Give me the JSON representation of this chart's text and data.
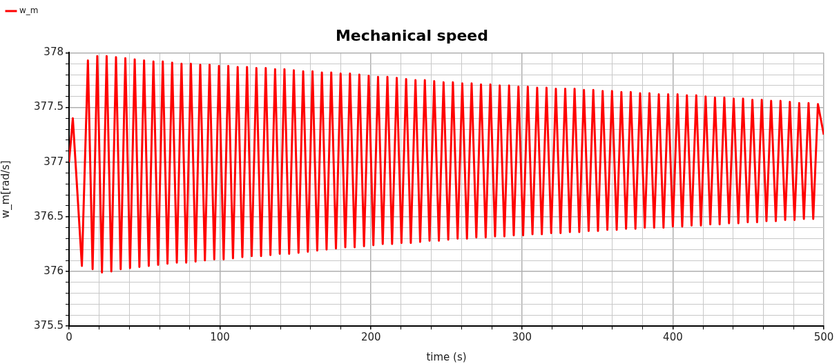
{
  "chart_data": {
    "type": "line",
    "title": "Mechanical speed",
    "xlabel": "time (s)",
    "ylabel": "w_m[rad/s]",
    "legend": "top left",
    "grid": true,
    "marker": "none",
    "line_style": "solid",
    "xlim": [
      0,
      500
    ],
    "ylim": [
      375.5,
      378
    ],
    "xticks": [
      0,
      {
        "value": 20,
        "label": null
      },
      {
        "value": 40,
        "label": null
      },
      {
        "value": 60,
        "label": null
      },
      {
        "value": 80,
        "label": null
      },
      100,
      {
        "value": 120,
        "label": null
      },
      {
        "value": 140,
        "label": null
      },
      {
        "value": 160,
        "label": null
      },
      {
        "value": 180,
        "label": null
      },
      200,
      {
        "value": 220,
        "label": null
      },
      {
        "value": 240,
        "label": null
      },
      {
        "value": 260,
        "label": null
      },
      {
        "value": 280,
        "label": null
      },
      300,
      {
        "value": 320,
        "label": null
      },
      {
        "value": 340,
        "label": null
      },
      {
        "value": 360,
        "label": null
      },
      {
        "value": 380,
        "label": null
      },
      400,
      {
        "value": 420,
        "label": null
      },
      {
        "value": 440,
        "label": null
      },
      {
        "value": 460,
        "label": null
      },
      {
        "value": 480,
        "label": null
      },
      500
    ],
    "yticks": [
      375.5,
      {
        "value": 375.6,
        "label": null
      },
      {
        "value": 375.7,
        "label": null
      },
      {
        "value": 375.8,
        "label": null
      },
      {
        "value": 375.9,
        "label": null
      },
      376,
      {
        "value": 376.1,
        "label": null
      },
      {
        "value": 376.2,
        "label": null
      },
      {
        "value": 376.3,
        "label": null
      },
      {
        "value": 376.4,
        "label": null
      },
      376.5,
      {
        "value": 376.6,
        "label": null
      },
      {
        "value": 376.7,
        "label": null
      },
      {
        "value": 376.8,
        "label": null
      },
      {
        "value": 376.9,
        "label": null
      },
      377,
      {
        "value": 377.1,
        "label": null
      },
      {
        "value": 377.2,
        "label": null
      },
      {
        "value": 377.3,
        "label": null
      },
      {
        "value": 377.4,
        "label": null
      },
      377.5,
      {
        "value": 377.6,
        "label": null
      },
      {
        "value": 377.7,
        "label": null
      },
      {
        "value": 377.8,
        "label": null
      },
      {
        "value": 377.9,
        "label": null
      },
      378
    ],
    "series": [
      {
        "name": "w_m",
        "color": "#ff0000",
        "x": [
          0,
          2.5,
          8.5,
          12.5,
          15.6,
          18.7,
          21.8,
          24.9,
          28.0,
          31.1,
          34.2,
          37.3,
          40.4,
          43.5,
          46.6,
          49.7,
          52.8,
          55.9,
          59.0,
          62.1,
          65.2,
          68.3,
          71.4,
          74.5,
          77.6,
          80.7,
          83.8,
          86.9,
          90.0,
          93.1,
          96.2,
          99.3,
          102.4,
          105.5,
          108.6,
          111.7,
          114.8,
          117.9,
          121.0,
          124.1,
          127.2,
          130.3,
          133.4,
          136.5,
          139.6,
          142.7,
          145.8,
          148.9,
          152.0,
          155.1,
          158.2,
          161.3,
          164.4,
          167.5,
          170.6,
          173.7,
          176.8,
          179.9,
          183.0,
          186.1,
          189.2,
          192.3,
          195.4,
          198.5,
          201.6,
          204.7,
          207.8,
          210.9,
          214.0,
          217.1,
          220.2,
          223.3,
          226.4,
          229.5,
          232.6,
          235.7,
          238.8,
          241.9,
          245.0,
          248.1,
          251.2,
          254.3,
          257.4,
          260.5,
          263.6,
          266.7,
          269.8,
          272.9,
          276.0,
          279.1,
          282.2,
          285.3,
          288.4,
          291.5,
          294.6,
          297.7,
          300.8,
          303.9,
          307.0,
          310.1,
          313.2,
          316.3,
          319.4,
          322.5,
          325.6,
          328.7,
          331.8,
          334.9,
          338.0,
          341.1,
          344.2,
          347.3,
          350.4,
          353.5,
          356.6,
          359.7,
          362.8,
          365.9,
          369.0,
          372.1,
          375.2,
          378.3,
          381.4,
          384.5,
          387.6,
          390.7,
          393.8,
          396.9,
          400.0,
          403.1,
          406.2,
          409.3,
          412.4,
          415.5,
          418.6,
          421.7,
          424.8,
          427.9,
          431.0,
          434.1,
          437.2,
          440.3,
          443.4,
          446.5,
          449.6,
          452.7,
          455.8,
          458.9,
          462.0,
          465.1,
          468.2,
          471.3,
          474.4,
          477.5,
          480.6,
          483.7,
          486.8,
          489.9,
          493.0,
          496.1,
          500
        ],
        "values": [
          377,
          377.4,
          376.05,
          377.93,
          376.02,
          377.97,
          375.99,
          377.97,
          376.0,
          377.96,
          376.02,
          377.95,
          376.03,
          377.94,
          376.04,
          377.93,
          376.05,
          377.92,
          376.06,
          377.92,
          376.07,
          377.91,
          376.08,
          377.9,
          376.08,
          377.9,
          376.09,
          377.89,
          376.1,
          377.89,
          376.11,
          377.88,
          376.11,
          377.88,
          376.12,
          377.87,
          376.13,
          377.87,
          376.14,
          377.86,
          376.14,
          377.86,
          376.15,
          377.85,
          376.16,
          377.85,
          376.16,
          377.84,
          376.17,
          377.83,
          376.18,
          377.83,
          376.19,
          377.82,
          376.2,
          377.82,
          376.21,
          377.81,
          376.22,
          377.81,
          376.22,
          377.8,
          376.23,
          377.79,
          376.24,
          377.78,
          376.25,
          377.78,
          376.25,
          377.77,
          376.26,
          377.76,
          376.26,
          377.75,
          376.27,
          377.75,
          376.28,
          377.74,
          376.28,
          377.73,
          376.29,
          377.73,
          376.3,
          377.72,
          376.3,
          377.72,
          376.31,
          377.71,
          376.31,
          377.71,
          376.32,
          377.7,
          376.32,
          377.7,
          376.33,
          377.69,
          376.33,
          377.69,
          376.34,
          377.68,
          376.34,
          377.68,
          376.35,
          377.67,
          376.35,
          377.67,
          376.36,
          377.67,
          376.36,
          377.66,
          376.37,
          377.66,
          376.37,
          377.65,
          376.38,
          377.65,
          376.38,
          377.64,
          376.39,
          377.64,
          376.39,
          377.63,
          376.4,
          377.63,
          376.4,
          377.62,
          376.4,
          377.62,
          376.41,
          377.62,
          376.41,
          377.61,
          376.42,
          377.61,
          376.42,
          377.6,
          376.43,
          377.59,
          376.43,
          377.59,
          376.44,
          377.58,
          376.44,
          377.58,
          376.45,
          377.57,
          376.45,
          377.57,
          376.46,
          377.56,
          376.46,
          377.56,
          376.47,
          377.55,
          376.47,
          377.54,
          376.48,
          377.54,
          376.48,
          377.53,
          377.25
        ]
      }
    ]
  }
}
